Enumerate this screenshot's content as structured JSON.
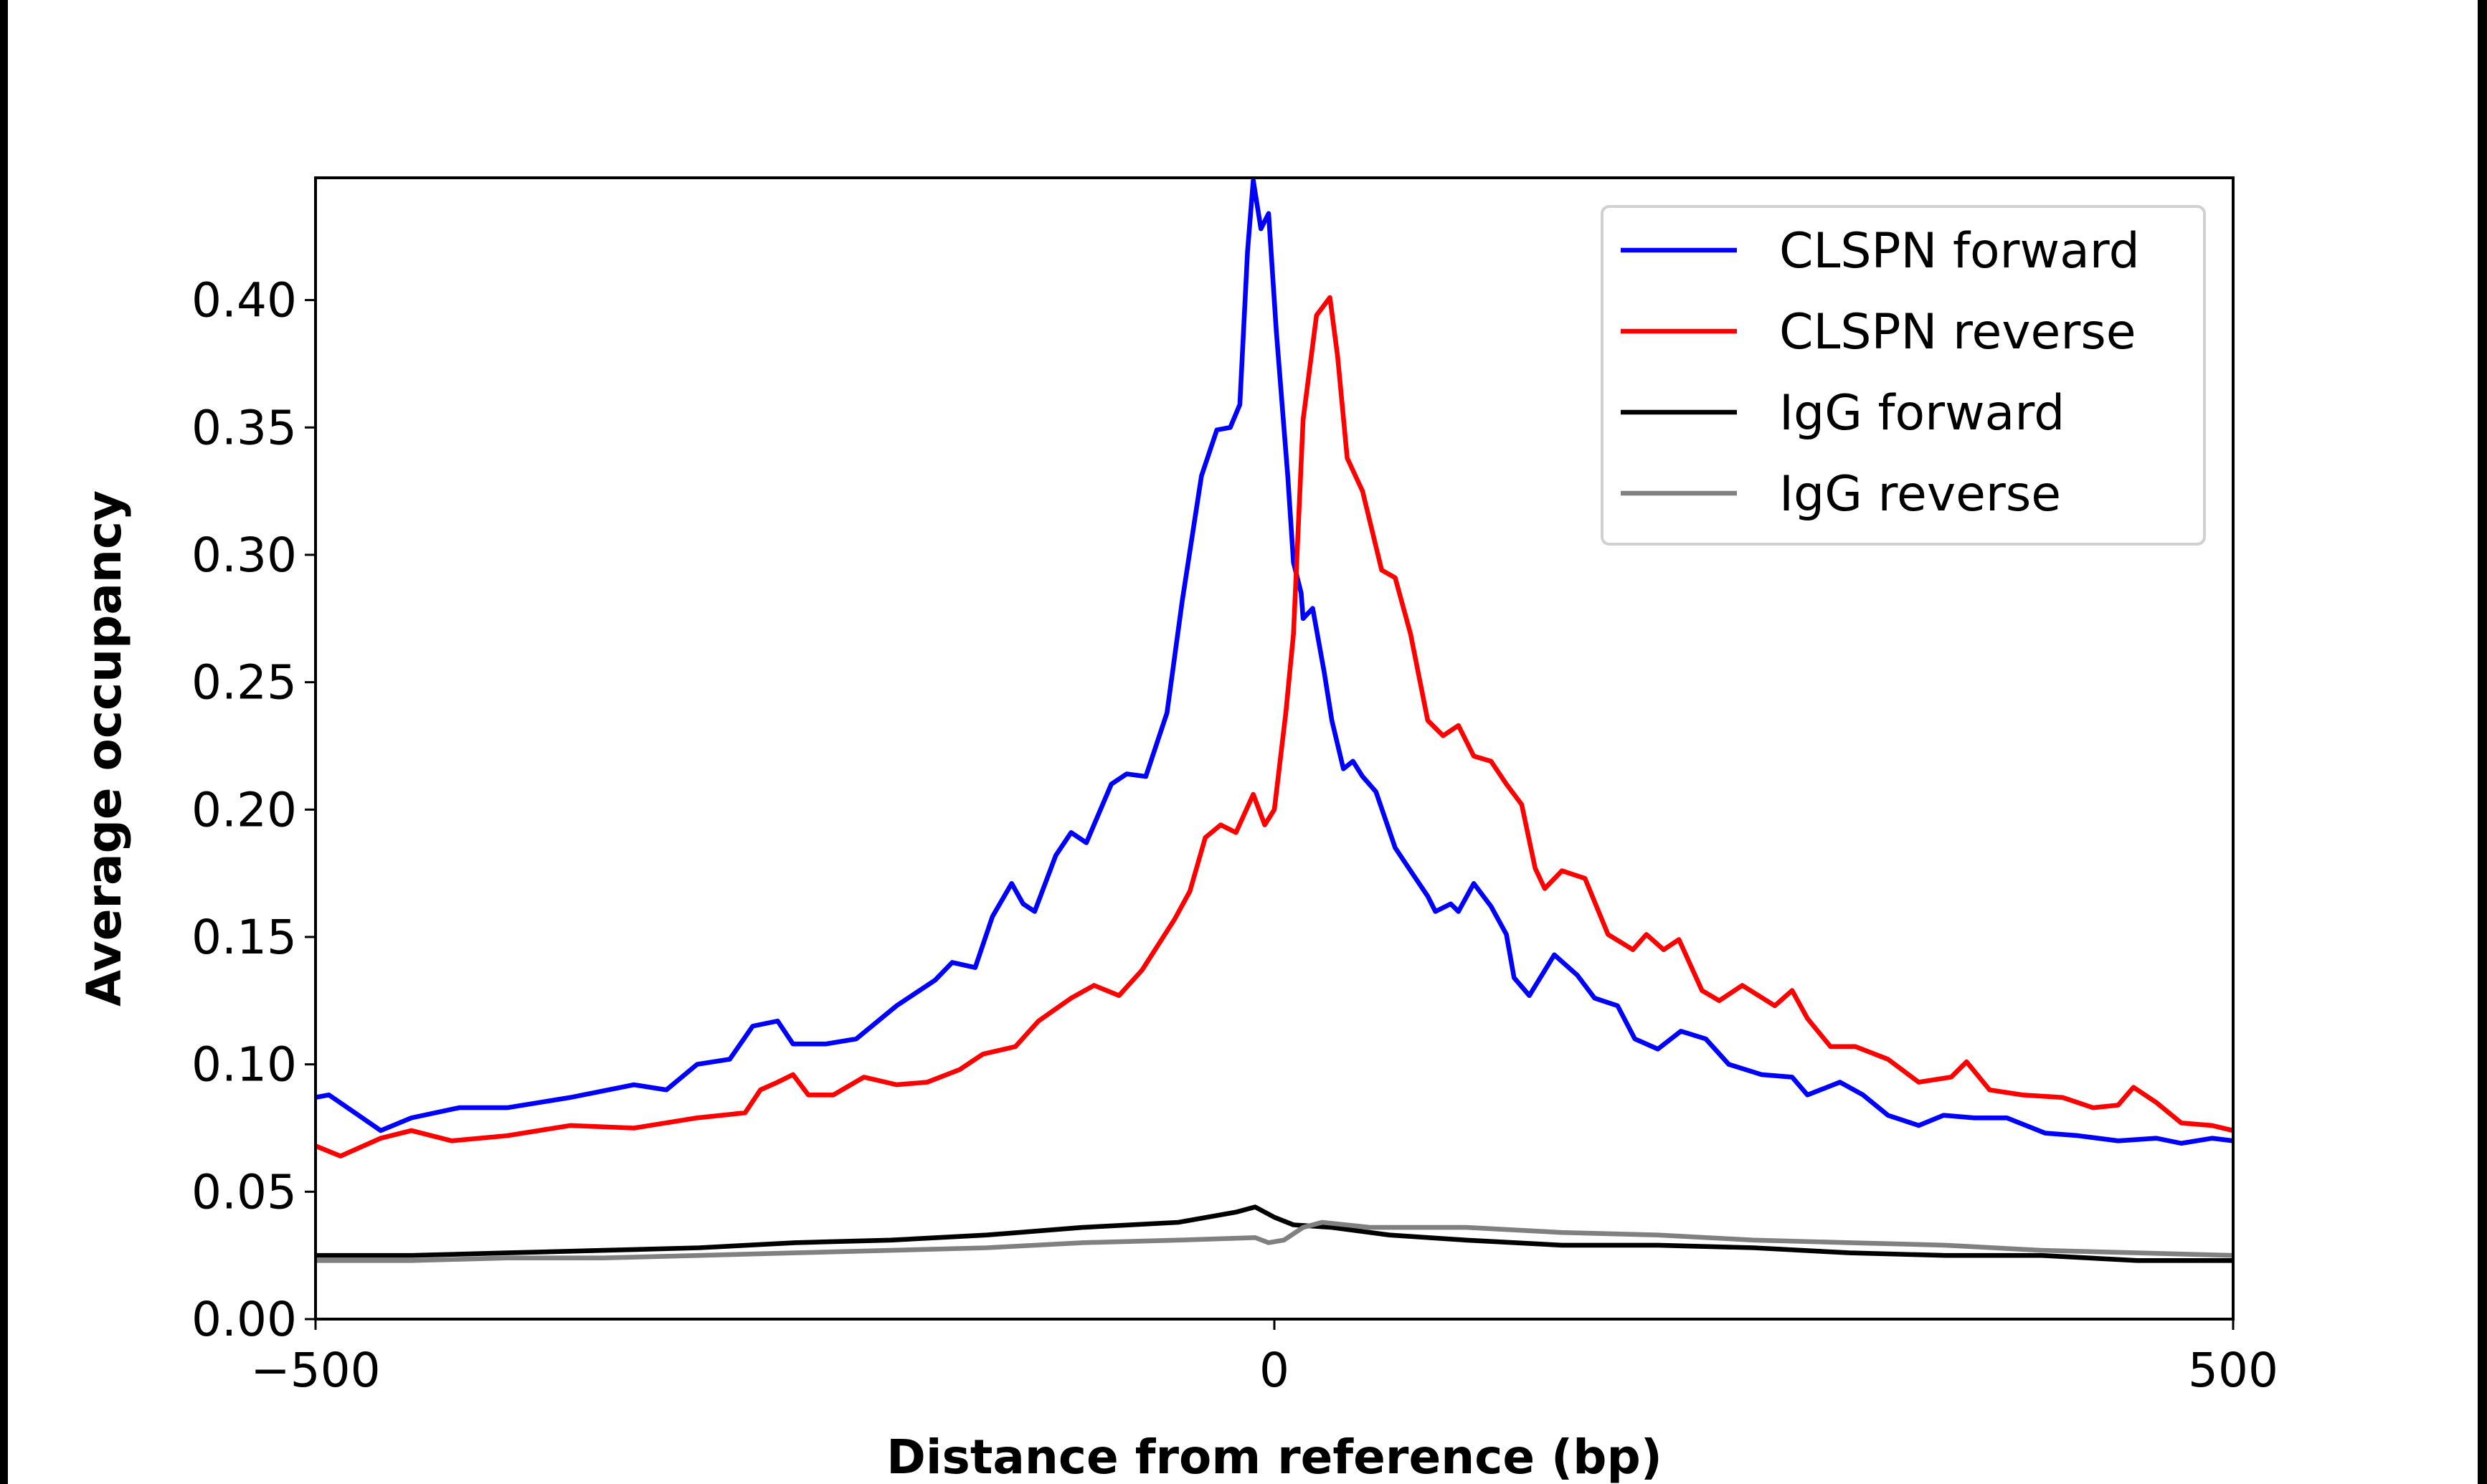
{
  "chart_data": {
    "type": "line",
    "title": "",
    "xlabel": "Distance from reference (bp)",
    "ylabel": "Average occupancy",
    "xlim": [
      -500,
      500
    ],
    "ylim": [
      0,
      0.448
    ],
    "xticks": [
      -500,
      0,
      500
    ],
    "xtick_labels": [
      "−500",
      "0",
      "500"
    ],
    "yticks": [
      0,
      0.05,
      0.1,
      0.15,
      0.2,
      0.25,
      0.3,
      0.35,
      0.4
    ],
    "ytick_labels": [
      "0.00",
      "0.05",
      "0.10",
      "0.15",
      "0.20",
      "0.25",
      "0.30",
      "0.35",
      "0.40"
    ],
    "grid": false,
    "legend_position": "top-right",
    "series": [
      {
        "name": "CLSPN forward",
        "color": "#0000ff",
        "x": [
          -500,
          -493,
          -466,
          -450,
          -425,
          -400,
          -367,
          -334,
          -317,
          -301,
          -284,
          -272,
          -259,
          -251,
          -234,
          -218,
          -197,
          -177,
          -168,
          -156,
          -147,
          -137,
          -131,
          -125,
          -114,
          -106,
          -98,
          -85,
          -77,
          -67,
          -56,
          -48,
          -38,
          -30,
          -23,
          -18,
          -14,
          -11,
          -7,
          -3,
          1,
          7,
          10,
          14,
          15,
          20,
          26,
          30,
          36,
          41,
          46,
          53,
          63,
          71,
          80,
          84,
          92,
          96,
          104,
          113,
          121,
          125,
          133,
          146,
          158,
          167,
          179,
          188,
          200,
          212,
          225,
          237,
          254,
          270,
          278,
          295,
          307,
          320,
          336,
          349,
          365,
          382,
          402,
          419,
          440,
          460,
          473,
          489,
          500
        ],
        "y": [
          0.087,
          0.088,
          0.074,
          0.079,
          0.083,
          0.083,
          0.087,
          0.092,
          0.09,
          0.1,
          0.102,
          0.115,
          0.117,
          0.108,
          0.108,
          0.11,
          0.123,
          0.133,
          0.14,
          0.138,
          0.158,
          0.171,
          0.163,
          0.16,
          0.182,
          0.191,
          0.187,
          0.21,
          0.214,
          0.213,
          0.238,
          0.282,
          0.331,
          0.349,
          0.35,
          0.359,
          0.419,
          0.447,
          0.428,
          0.434,
          0.388,
          0.331,
          0.297,
          0.285,
          0.275,
          0.279,
          0.254,
          0.235,
          0.216,
          0.219,
          0.213,
          0.207,
          0.185,
          0.176,
          0.166,
          0.16,
          0.163,
          0.16,
          0.171,
          0.162,
          0.151,
          0.134,
          0.127,
          0.143,
          0.135,
          0.126,
          0.123,
          0.11,
          0.106,
          0.113,
          0.11,
          0.1,
          0.096,
          0.095,
          0.088,
          0.093,
          0.088,
          0.08,
          0.076,
          0.08,
          0.079,
          0.079,
          0.073,
          0.072,
          0.07,
          0.071,
          0.069,
          0.071,
          0.07
        ]
      },
      {
        "name": "CLSPN reverse",
        "color": "#ff0000",
        "x": [
          -500,
          -487,
          -466,
          -450,
          -429,
          -400,
          -367,
          -334,
          -301,
          -276,
          -268,
          -259,
          -251,
          -243,
          -230,
          -214,
          -197,
          -181,
          -164,
          -152,
          -135,
          -123,
          -106,
          -94,
          -81,
          -69,
          -52,
          -44,
          -36,
          -28,
          -20,
          -11,
          -5,
          0,
          6,
          10,
          15,
          22,
          29,
          33,
          38,
          46,
          56,
          63,
          71,
          80,
          88,
          96,
          104,
          113,
          121,
          129,
          136,
          141,
          150,
          162,
          174,
          187,
          194,
          203,
          211,
          223,
          232,
          244,
          261,
          270,
          278,
          290,
          303,
          320,
          336,
          353,
          361,
          373,
          390,
          411,
          427,
          440,
          448,
          460,
          473,
          489,
          500
        ],
        "y": [
          0.068,
          0.064,
          0.071,
          0.074,
          0.07,
          0.072,
          0.076,
          0.075,
          0.079,
          0.081,
          0.09,
          0.093,
          0.096,
          0.088,
          0.088,
          0.095,
          0.092,
          0.093,
          0.098,
          0.104,
          0.107,
          0.117,
          0.126,
          0.131,
          0.127,
          0.137,
          0.157,
          0.168,
          0.189,
          0.194,
          0.191,
          0.206,
          0.194,
          0.2,
          0.238,
          0.269,
          0.353,
          0.394,
          0.401,
          0.378,
          0.338,
          0.325,
          0.294,
          0.291,
          0.269,
          0.235,
          0.229,
          0.233,
          0.221,
          0.219,
          0.21,
          0.202,
          0.177,
          0.169,
          0.176,
          0.173,
          0.151,
          0.145,
          0.151,
          0.145,
          0.149,
          0.129,
          0.125,
          0.131,
          0.123,
          0.129,
          0.118,
          0.107,
          0.107,
          0.102,
          0.093,
          0.095,
          0.101,
          0.09,
          0.088,
          0.087,
          0.083,
          0.084,
          0.091,
          0.085,
          0.077,
          0.076,
          0.074
        ]
      },
      {
        "name": "IgG forward",
        "color": "#000000",
        "x": [
          -500,
          -450,
          -400,
          -350,
          -300,
          -250,
          -200,
          -150,
          -100,
          -50,
          -20,
          -10,
          0,
          10,
          30,
          60,
          100,
          150,
          200,
          250,
          300,
          350,
          400,
          450,
          500
        ],
        "y": [
          0.025,
          0.025,
          0.026,
          0.027,
          0.028,
          0.03,
          0.031,
          0.033,
          0.036,
          0.038,
          0.042,
          0.044,
          0.04,
          0.037,
          0.036,
          0.033,
          0.031,
          0.029,
          0.029,
          0.028,
          0.026,
          0.025,
          0.025,
          0.023,
          0.023
        ]
      },
      {
        "name": "IgG reverse",
        "color": "#808080",
        "x": [
          -500,
          -450,
          -400,
          -350,
          -300,
          -250,
          -200,
          -150,
          -100,
          -50,
          -10,
          -3,
          5,
          15,
          25,
          50,
          100,
          150,
          200,
          250,
          300,
          350,
          400,
          450,
          500
        ],
        "y": [
          0.023,
          0.023,
          0.024,
          0.024,
          0.025,
          0.026,
          0.027,
          0.028,
          0.03,
          0.031,
          0.032,
          0.03,
          0.031,
          0.036,
          0.038,
          0.036,
          0.036,
          0.034,
          0.033,
          0.031,
          0.03,
          0.029,
          0.027,
          0.026,
          0.025
        ]
      }
    ]
  }
}
